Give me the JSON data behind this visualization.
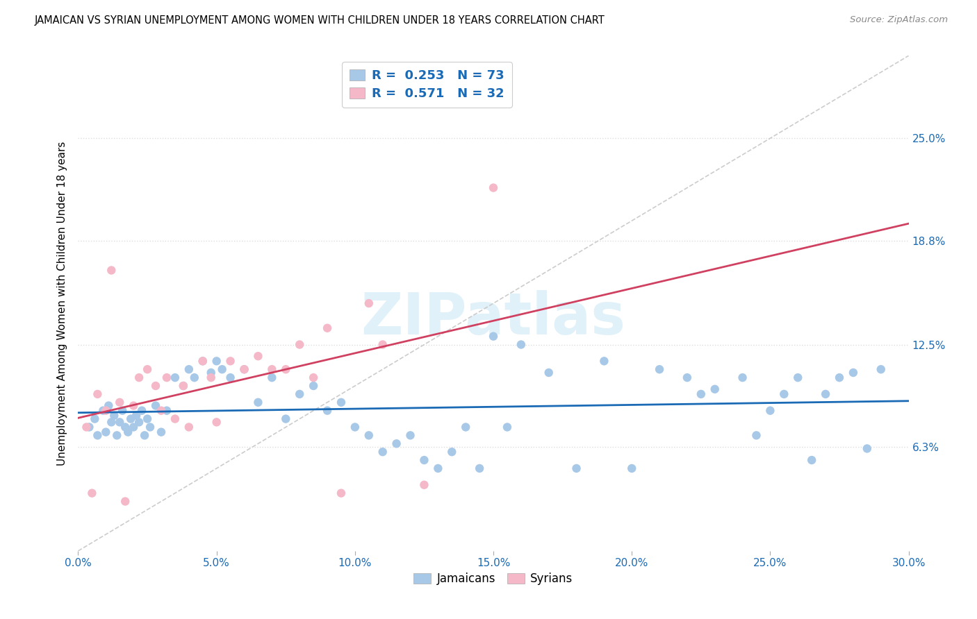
{
  "title": "JAMAICAN VS SYRIAN UNEMPLOYMENT AMONG WOMEN WITH CHILDREN UNDER 18 YEARS CORRELATION CHART",
  "source": "Source: ZipAtlas.com",
  "ylabel": "Unemployment Among Women with Children Under 18 years",
  "xlabel_ticks": [
    "0.0%",
    "5.0%",
    "10.0%",
    "15.0%",
    "20.0%",
    "25.0%",
    "30.0%"
  ],
  "xlabel_vals": [
    0.0,
    5.0,
    10.0,
    15.0,
    20.0,
    25.0,
    30.0
  ],
  "ylim": [
    0,
    30
  ],
  "xlim": [
    0,
    30
  ],
  "ytick_labels": [
    "6.3%",
    "12.5%",
    "18.8%",
    "25.0%"
  ],
  "ytick_vals": [
    6.3,
    12.5,
    18.8,
    25.0
  ],
  "blue_color": "#a8c8e8",
  "pink_color": "#f4b8c8",
  "blue_line_color": "#1a6ab5",
  "pink_line_color": "#d04060",
  "diag_line_color": "#cccccc",
  "r_n_color": "#1a6ab5",
  "pink_r_n_color": "#d04060",
  "watermark": "ZIPatlas",
  "jamaican_x": [
    0.4,
    0.6,
    0.7,
    0.9,
    1.0,
    1.1,
    1.2,
    1.3,
    1.4,
    1.5,
    1.6,
    1.7,
    1.8,
    1.9,
    2.0,
    2.1,
    2.2,
    2.3,
    2.4,
    2.5,
    2.6,
    2.8,
    3.0,
    3.2,
    3.5,
    3.8,
    4.0,
    4.2,
    4.5,
    4.8,
    5.0,
    5.2,
    5.5,
    6.0,
    6.5,
    7.0,
    7.5,
    8.0,
    8.5,
    9.0,
    9.5,
    10.0,
    10.5,
    11.0,
    11.5,
    12.0,
    12.5,
    13.0,
    13.5,
    14.0,
    14.5,
    15.0,
    15.5,
    16.0,
    17.0,
    18.0,
    19.0,
    20.0,
    21.0,
    22.0,
    22.5,
    23.0,
    24.0,
    24.5,
    25.0,
    25.5,
    26.0,
    26.5,
    27.0,
    27.5,
    28.0,
    28.5,
    29.0
  ],
  "jamaican_y": [
    7.5,
    8.0,
    7.0,
    8.5,
    7.2,
    8.8,
    7.8,
    8.2,
    7.0,
    7.8,
    8.5,
    7.5,
    7.2,
    8.0,
    7.5,
    8.2,
    7.8,
    8.5,
    7.0,
    8.0,
    7.5,
    8.8,
    7.2,
    8.5,
    10.5,
    10.0,
    11.0,
    10.5,
    11.5,
    10.8,
    11.5,
    11.0,
    10.5,
    11.0,
    9.0,
    10.5,
    8.0,
    9.5,
    10.0,
    8.5,
    9.0,
    7.5,
    7.0,
    6.0,
    6.5,
    7.0,
    5.5,
    5.0,
    6.0,
    7.5,
    5.0,
    13.0,
    7.5,
    12.5,
    10.8,
    5.0,
    11.5,
    5.0,
    11.0,
    10.5,
    9.5,
    9.8,
    10.5,
    7.0,
    8.5,
    9.5,
    10.5,
    5.5,
    9.5,
    10.5,
    10.8,
    6.2,
    11.0
  ],
  "syrian_x": [
    0.3,
    0.5,
    0.7,
    1.0,
    1.2,
    1.5,
    1.7,
    2.0,
    2.2,
    2.5,
    2.8,
    3.0,
    3.2,
    3.5,
    3.8,
    4.0,
    4.5,
    4.8,
    5.0,
    5.5,
    6.0,
    6.5,
    7.0,
    7.5,
    8.0,
    8.5,
    9.0,
    9.5,
    10.5,
    11.0,
    12.5,
    15.0
  ],
  "syrian_y": [
    7.5,
    3.5,
    9.5,
    8.5,
    17.0,
    9.0,
    3.0,
    8.8,
    10.5,
    11.0,
    10.0,
    8.5,
    10.5,
    8.0,
    10.0,
    7.5,
    11.5,
    10.5,
    7.8,
    11.5,
    11.0,
    11.8,
    11.0,
    11.0,
    12.5,
    10.5,
    13.5,
    3.5,
    15.0,
    12.5,
    4.0,
    22.0
  ]
}
